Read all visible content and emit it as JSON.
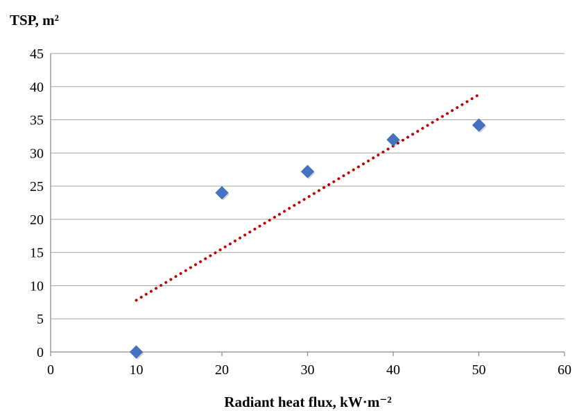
{
  "chart_data": {
    "type": "scatter",
    "ylabel": "TSP, m²",
    "xlabel": "Radiant heat flux, kW·m⁻²",
    "xlim": [
      0,
      60
    ],
    "ylim": [
      0,
      45
    ],
    "x_ticks": [
      "0",
      "10",
      "20",
      "30",
      "40",
      "50",
      "60"
    ],
    "y_ticks": [
      "0",
      "5",
      "10",
      "15",
      "20",
      "25",
      "30",
      "35",
      "40",
      "45"
    ],
    "grid": "horizontal",
    "series": [
      {
        "points": [
          {
            "x": 10,
            "y": 0
          },
          {
            "x": 20,
            "y": 24
          },
          {
            "x": 30,
            "y": 27.2
          },
          {
            "x": 40,
            "y": 32
          },
          {
            "x": 50,
            "y": 34.2
          }
        ],
        "marker": "diamond",
        "color": "#4472C4"
      }
    ],
    "trendline": {
      "type": "linear",
      "style": "dotted",
      "color": "#C00000",
      "x_range": [
        10,
        50
      ],
      "y_range": [
        7.8,
        38.8
      ]
    }
  }
}
